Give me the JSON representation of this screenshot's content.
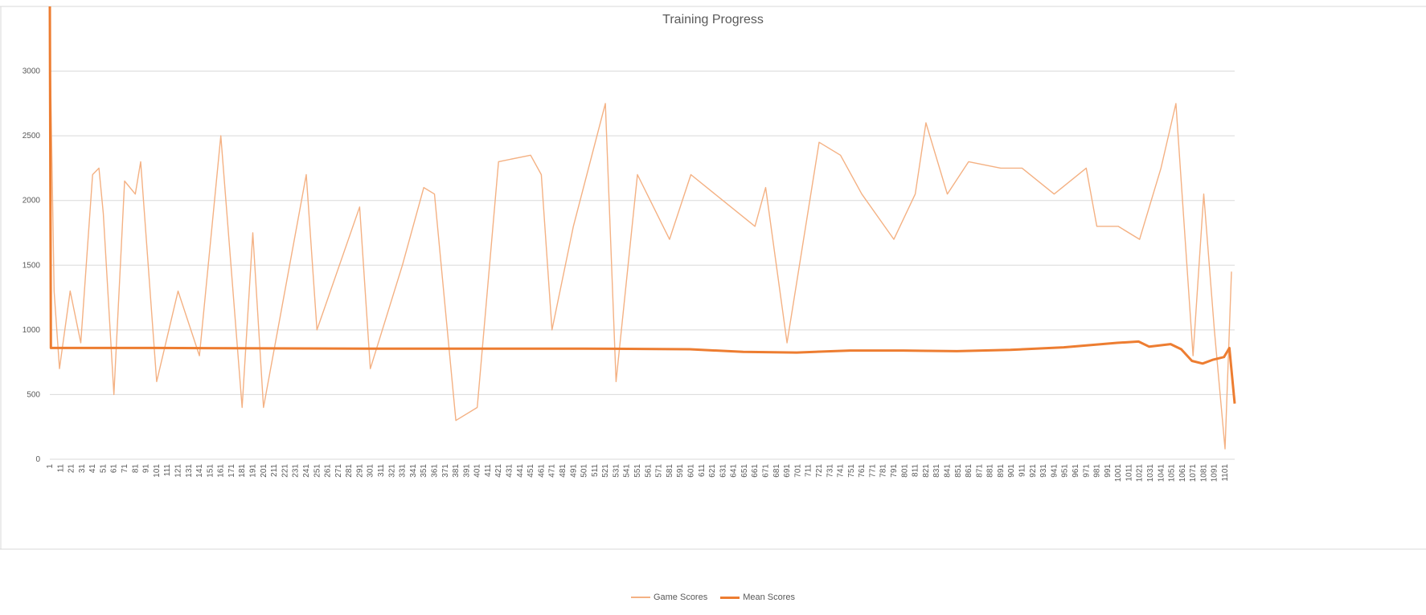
{
  "chart_data": {
    "type": "line",
    "title": "Training Progress",
    "xlabel": "",
    "ylabel": "",
    "ylim": [
      0,
      3500
    ],
    "yticks": [
      0,
      500,
      1000,
      1500,
      2000,
      2500,
      3000
    ],
    "xrange": [
      1,
      1110
    ],
    "xtick_step": 10,
    "grid": true,
    "legend_position": "bottom",
    "series": [
      {
        "name": "Game Scores",
        "color": "#F4B183",
        "approximate_points": [
          [
            1,
            3300
          ],
          [
            5,
            1300
          ],
          [
            10,
            700
          ],
          [
            20,
            1300
          ],
          [
            30,
            900
          ],
          [
            41,
            2200
          ],
          [
            47,
            2250
          ],
          [
            51,
            1900
          ],
          [
            61,
            500
          ],
          [
            71,
            2150
          ],
          [
            81,
            2050
          ],
          [
            86,
            2300
          ],
          [
            101,
            600
          ],
          [
            121,
            1300
          ],
          [
            141,
            800
          ],
          [
            161,
            2500
          ],
          [
            181,
            400
          ],
          [
            191,
            1750
          ],
          [
            201,
            400
          ],
          [
            241,
            2200
          ],
          [
            251,
            1000
          ],
          [
            291,
            1950
          ],
          [
            301,
            700
          ],
          [
            331,
            1500
          ],
          [
            351,
            2100
          ],
          [
            361,
            2050
          ],
          [
            381,
            300
          ],
          [
            401,
            400
          ],
          [
            421,
            2300
          ],
          [
            451,
            2350
          ],
          [
            461,
            2200
          ],
          [
            471,
            1000
          ],
          [
            491,
            1800
          ],
          [
            521,
            2750
          ],
          [
            531,
            600
          ],
          [
            551,
            2200
          ],
          [
            581,
            1700
          ],
          [
            601,
            2200
          ],
          [
            631,
            2000
          ],
          [
            661,
            1800
          ],
          [
            671,
            2100
          ],
          [
            691,
            900
          ],
          [
            721,
            2450
          ],
          [
            741,
            2350
          ],
          [
            761,
            2050
          ],
          [
            791,
            1700
          ],
          [
            811,
            2050
          ],
          [
            821,
            2600
          ],
          [
            841,
            2050
          ],
          [
            861,
            2300
          ],
          [
            891,
            2250
          ],
          [
            911,
            2250
          ],
          [
            941,
            2050
          ],
          [
            971,
            2250
          ],
          [
            981,
            1800
          ],
          [
            1001,
            1800
          ],
          [
            1021,
            1700
          ],
          [
            1041,
            2250
          ],
          [
            1055,
            2750
          ],
          [
            1071,
            800
          ],
          [
            1081,
            2050
          ],
          [
            1091,
            1000
          ],
          [
            1101,
            80
          ],
          [
            1107,
            1450
          ]
        ]
      },
      {
        "name": "Mean Scores",
        "color": "#ED7D31",
        "approximate_points": [
          [
            1,
            3500
          ],
          [
            2,
            860
          ],
          [
            100,
            860
          ],
          [
            300,
            855
          ],
          [
            500,
            855
          ],
          [
            600,
            850
          ],
          [
            650,
            830
          ],
          [
            700,
            825
          ],
          [
            750,
            840
          ],
          [
            800,
            840
          ],
          [
            850,
            835
          ],
          [
            900,
            845
          ],
          [
            950,
            865
          ],
          [
            1000,
            900
          ],
          [
            1020,
            910
          ],
          [
            1030,
            870
          ],
          [
            1050,
            890
          ],
          [
            1060,
            850
          ],
          [
            1070,
            760
          ],
          [
            1080,
            740
          ],
          [
            1090,
            770
          ],
          [
            1100,
            790
          ],
          [
            1105,
            860
          ],
          [
            1110,
            430
          ]
        ]
      }
    ]
  }
}
